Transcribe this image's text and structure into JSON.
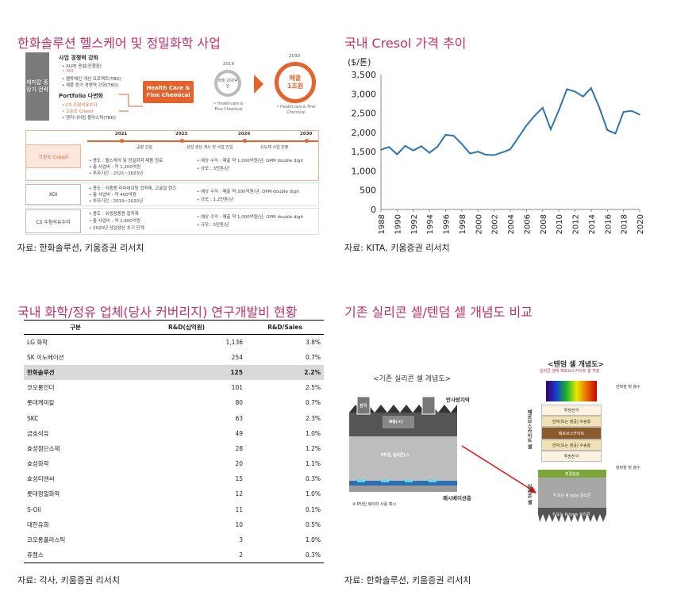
{
  "panel1": {
    "title": "한화솔루션 헬스케어 및 정밀화학 사업",
    "left_label": "케미칼 중장기 전략",
    "head1": "사업 경쟁력 강화",
    "head1_items": [
      "• XLPE 증설(진행중)",
      "• XDI",
      "• 밸류체인 개선 프로젝트(TBD)",
      "• 제품 원가 경쟁력 강화(TBD)"
    ],
    "head2": "Portfolio 다변화",
    "head2_items": [
      "• CS 수첨석유수지",
      "• 고순도 Cresol",
      "• 엔지니어링 플라스틱(TBD)"
    ],
    "hc_box": "Health Care & Fine Chemical",
    "year_2019": "2019",
    "year_2030": "2030",
    "c2019_text": "매출 200억원",
    "c2030_line1": "매출",
    "c2030_line2": "1조원",
    "cap_2019": "• Healthcare & Fine Chemical",
    "cap_2030": "• Healthcare & Fine Chemical",
    "timeline_years": [
      "2021",
      "2023",
      "2026",
      "2030"
    ],
    "timeline_labels": [
      "공장 건설",
      "상업 생산 개시 및 사업 진입",
      "유도체 사업 진출"
    ],
    "rows": [
      {
        "name": "고순도 Cresol",
        "left": [
          "• 용도 : 헬스케어 및 정밀화학 제품 원료",
          "• 총 사업비 : 약 1,200억원",
          "• 투자기간 : 2021~2023년"
        ],
        "right": [
          "• 예상 수익 : 매출 약 1,000억원/년, OPM double digit",
          "• 규모 : 3만톤/년"
        ]
      },
      {
        "name": "XDI",
        "left": [
          "• 용도 : 식품용 라미네이팅 접착제, 고굴절 렌즈",
          "• 총 사업비 : 약 400억원",
          "• 투자기간 : 2019~2020년"
        ],
        "right": [
          "• 예상 수익 : 매출 약 200억원/년, OPM double digit",
          "• 규모 : 1.2만톤/년"
        ]
      },
      {
        "name": "CS 수첨석유수지",
        "left": [
          "• 용도 : 위생용품용 접착제",
          "• 총 사업비 : 약 1,600억원",
          "• 2020년 상업생산 초기 단계"
        ],
        "right": [
          "• 예상 수익 : 매출 약 1,000억원/년, OPM double digit",
          "• 규모 : 5만톤/년"
        ]
      }
    ],
    "source": "자료: 한화솔루션, 키움증권 리서치"
  },
  "panel2": {
    "title": "국내 Cresol 가격 추이",
    "source": "자료: KITA, 키움증권 리서치"
  },
  "chart_data": {
    "type": "line",
    "title": "",
    "ylabel": "($/톤)",
    "ylim": [
      0,
      3500
    ],
    "yticks": [
      0,
      500,
      1000,
      1500,
      2000,
      2500,
      3000,
      3500
    ],
    "ytick_labels": [
      "0",
      "500",
      "1,000",
      "1,500",
      "2,000",
      "2,500",
      "3,000",
      "3,500"
    ],
    "xticks": [
      "1988",
      "1990",
      "1992",
      "1994",
      "1996",
      "1998",
      "2000",
      "2002",
      "2004",
      "2006",
      "2008",
      "2010",
      "2012",
      "2014",
      "2016",
      "2018",
      "2020"
    ],
    "grid": false,
    "color": "#2e74b5",
    "x": [
      1988,
      1989,
      1990,
      1991,
      1992,
      1993,
      1994,
      1995,
      1996,
      1997,
      1998,
      1999,
      2000,
      2001,
      2002,
      2003,
      2004,
      2005,
      2006,
      2007,
      2008,
      2009,
      2010,
      2011,
      2012,
      2013,
      2014,
      2015,
      2016,
      2017,
      2018,
      2019,
      2020
    ],
    "values": [
      1550,
      1620,
      1430,
      1650,
      1530,
      1640,
      1470,
      1630,
      1940,
      1910,
      1700,
      1450,
      1500,
      1420,
      1410,
      1480,
      1560,
      1870,
      2180,
      2430,
      2640,
      2080,
      2570,
      3120,
      3060,
      2930,
      3150,
      2650,
      2060,
      1970,
      2530,
      2560,
      2460
    ]
  },
  "panel3": {
    "title": "국내 화학/정유 업체(당사 커버리지) 연구개발비 현황",
    "headers": [
      "구분",
      "R&D(십억원)",
      "R&D/Sales"
    ],
    "rows": [
      [
        "LG 화학",
        "1,136",
        "3.8%"
      ],
      [
        "SK 이노베이션",
        "254",
        "0.7%"
      ],
      [
        "한화솔루션",
        "125",
        "2.2%"
      ],
      [
        "코오롱인더",
        "101",
        "2.5%"
      ],
      [
        "롯데케미칼",
        "80",
        "0.7%"
      ],
      [
        "SKC",
        "63",
        "2.3%"
      ],
      [
        "금호석유",
        "49",
        "1.0%"
      ],
      [
        "효성첨단소재",
        "28",
        "1.2%"
      ],
      [
        "효성화학",
        "20",
        "1.1%"
      ],
      [
        "효성티앤씨",
        "15",
        "0.3%"
      ],
      [
        "롯데정밀화학",
        "12",
        "1.0%"
      ],
      [
        "S-Oil",
        "11",
        "0.1%"
      ],
      [
        "대한유화",
        "10",
        "0.5%"
      ],
      [
        "코오롱플라스틱",
        "3",
        "1.0%"
      ],
      [
        "휴켐스",
        "2",
        "0.3%"
      ]
    ],
    "highlight_row": 2,
    "source": "자료: 각사, 키움증권 리서치"
  },
  "panel4": {
    "title": "기존 실리콘 셀/텐덤 셀 개념도 비교",
    "left_title": "<기존 실리콘 셀 개념도>",
    "right_title": "<텐덤 셀 개념도>",
    "right_subtitle": "실리콘 셀에 페로브스카이트 셀 적층",
    "left_labels": {
      "electrode": "전극",
      "antireflect": "반사방지막",
      "n_layer": "N층(+)",
      "p_layer": "P타입 실리콘(-)",
      "passivation": "패시베이션층",
      "note": "※ P타입 웨이퍼 사용 예시"
    },
    "right_layers": [
      "투명전극",
      "전자(또는 정공) 수송층",
      "페로브스카이트",
      "전자(또는 정공) 수송층",
      "투명전극",
      "재결합층",
      "P 또는 N type 실리콘",
      "P 또는 N type 실리콘"
    ],
    "right_side": {
      "absorb_short": "단파장 빛 흡수",
      "perov_cell": "페로브스카이트 셀",
      "absorb_long": "장파장 빛 흡수",
      "si_cell": "실리콘 셀"
    },
    "source": "자료: 한화솔루션, 키움증권 리서치"
  }
}
